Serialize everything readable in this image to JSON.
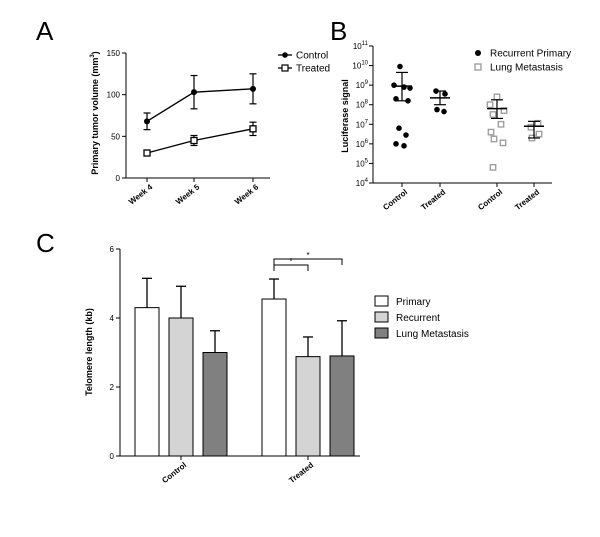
{
  "panels": {
    "A": {
      "letter": "A"
    },
    "B": {
      "letter": "B"
    },
    "C": {
      "letter": "C"
    }
  },
  "chart_data": [
    {
      "id": "A",
      "type": "line",
      "ylabel_main": "Primary tumor volume (mm",
      "ylabel_sup": "3",
      "ylabel_close": ")",
      "categories": [
        "Week 4",
        "Week 5",
        "Week 6"
      ],
      "ylim": [
        0,
        150
      ],
      "yticks": [
        0,
        50,
        100,
        150
      ],
      "series": [
        {
          "name": "Control",
          "marker": "circle",
          "values": [
            68,
            103,
            107
          ],
          "err": [
            10,
            20,
            18
          ]
        },
        {
          "name": "Treated",
          "marker": "square",
          "values": [
            30,
            45,
            59
          ],
          "err": [
            2,
            6,
            8
          ]
        }
      ],
      "legend_position": "top-right"
    },
    {
      "id": "B",
      "type": "scatter",
      "ylabel": "Luciferase signal",
      "ylog": true,
      "ylim_exp": [
        4,
        11
      ],
      "ytick_base": "10",
      "groups": [
        {
          "label": "Control",
          "series": "Recurrent Primary",
          "mean_exp": 8.95,
          "sem_top_exp": 9.65,
          "sem_bot_exp": 8.2,
          "points_exp": [
            9.95,
            9.0,
            8.9,
            8.85,
            8.3,
            8.2,
            6.8,
            6.45,
            6.0,
            5.9
          ]
        },
        {
          "label": "Treated",
          "series": "Recurrent Primary",
          "mean_exp": 8.35,
          "sem_top_exp": 8.7,
          "sem_bot_exp": 8.0,
          "points_exp": [
            8.7,
            8.55,
            7.75,
            7.65
          ]
        },
        {
          "label": "Control",
          "series": "Lung Metastasis",
          "mean_exp": 7.8,
          "sem_top_exp": 8.25,
          "sem_bot_exp": 7.3,
          "points_exp": [
            8.4,
            8.0,
            7.7,
            7.5,
            7.0,
            6.6,
            6.25,
            6.05,
            4.8
          ]
        },
        {
          "label": "Treated",
          "series": "Lung Metastasis",
          "mean_exp": 6.9,
          "sem_top_exp": 7.15,
          "sem_bot_exp": 6.3,
          "points_exp": [
            7.05,
            6.85,
            6.5,
            6.3
          ]
        }
      ],
      "legend": [
        {
          "name": "Recurrent Primary",
          "marker": "filled-circle"
        },
        {
          "name": "Lung Metastasis",
          "marker": "hollow-square"
        }
      ],
      "legend_position": "top-right"
    },
    {
      "id": "C",
      "type": "bar",
      "ylabel": "Telomere length (kb)",
      "ylim": [
        0,
        6
      ],
      "yticks": [
        0,
        2,
        4,
        6
      ],
      "categories": [
        "Control",
        "Treated"
      ],
      "series": [
        {
          "name": "Primary",
          "color": "#ffffff",
          "values": [
            4.3,
            4.55
          ],
          "err": [
            0.85,
            0.58
          ]
        },
        {
          "name": "Recurrent",
          "color": "#d4d4d4",
          "values": [
            4.0,
            2.88
          ],
          "err": [
            0.92,
            0.57
          ]
        },
        {
          "name": "Lung Metastasis",
          "color": "#808080",
          "values": [
            3.0,
            2.9
          ],
          "err": [
            0.63,
            1.02
          ]
        }
      ],
      "significance": [
        {
          "category": "Treated",
          "from": "Primary",
          "to": "Recurrent",
          "label": "*"
        },
        {
          "category": "Treated",
          "from": "Primary",
          "to": "Lung Metastasis",
          "label": "*"
        }
      ],
      "legend_position": "right"
    }
  ]
}
